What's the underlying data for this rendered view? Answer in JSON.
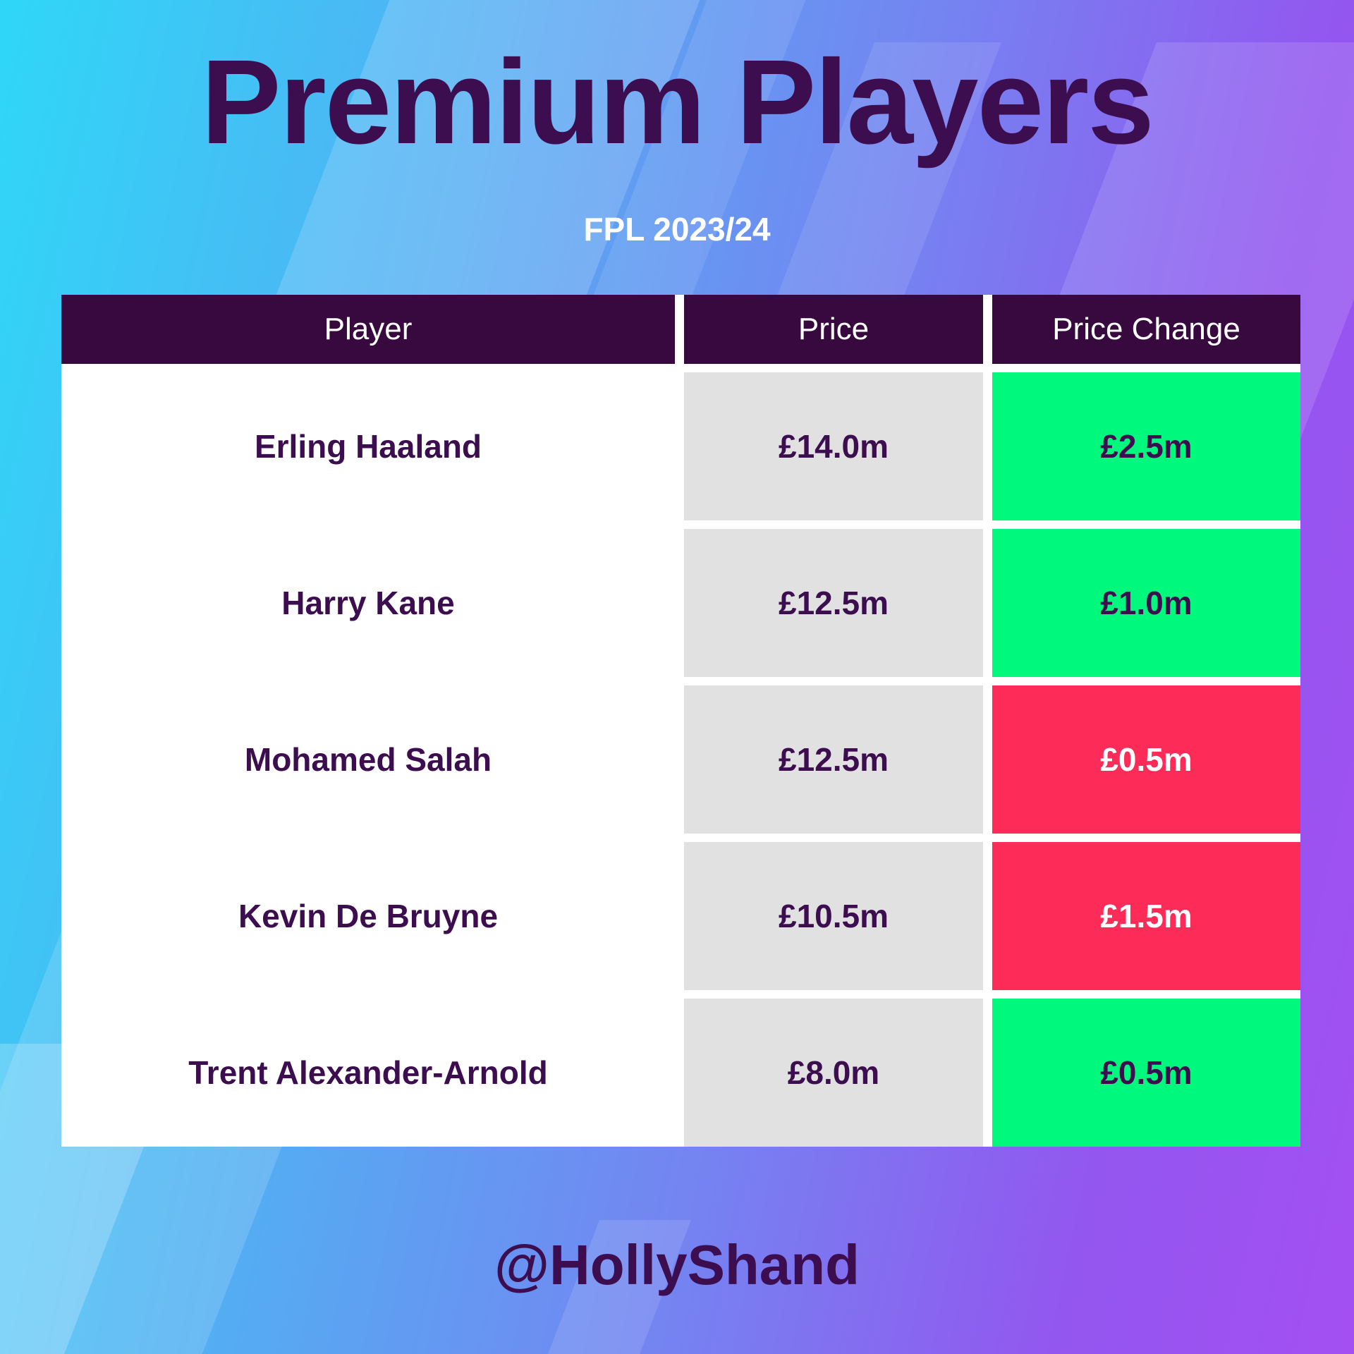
{
  "title": "Premium Players",
  "subtitle": "FPL 2023/24",
  "footer": "@HollyShand",
  "colors": {
    "background_cyan": "#2fd7f7",
    "background_purple": "#a44ff2",
    "dark_purple_ink": "#3c0e4f",
    "header_background": "#38093f",
    "price_cell_gray": "#e2e1e2",
    "increase_green": "#00f87d",
    "decrease_red": "#fc2b58"
  },
  "table": {
    "headers": [
      "Player",
      "Price",
      "Price Change"
    ],
    "rows": [
      {
        "player": "Erling Haaland",
        "price": "£14.0m",
        "change": "£2.5m",
        "direction": "up"
      },
      {
        "player": "Harry Kane",
        "price": "£12.5m",
        "change": "£1.0m",
        "direction": "up"
      },
      {
        "player": "Mohamed Salah",
        "price": "£12.5m",
        "change": "£0.5m",
        "direction": "down"
      },
      {
        "player": "Kevin De Bruyne",
        "price": "£10.5m",
        "change": "£1.5m",
        "direction": "down"
      },
      {
        "player": "Trent Alexander-Arnold",
        "price": "£8.0m",
        "change": "£0.5m",
        "direction": "up"
      }
    ]
  },
  "chart_data": {
    "type": "table",
    "title": "Premium Players",
    "subtitle": "FPL 2023/24",
    "columns": [
      "Player",
      "Price",
      "Price Change"
    ],
    "rows": [
      [
        "Erling Haaland",
        "£14.0m",
        "£2.5m"
      ],
      [
        "Harry Kane",
        "£12.5m",
        "£1.0m"
      ],
      [
        "Mohamed Salah",
        "£12.5m",
        "£0.5m"
      ],
      [
        "Kevin De Bruyne",
        "£10.5m",
        "£1.5m"
      ],
      [
        "Trent Alexander-Arnold",
        "£8.0m",
        "£0.5m"
      ]
    ],
    "price_change_direction": [
      "up",
      "up",
      "down",
      "down",
      "up"
    ],
    "price_values_millions": [
      14.0,
      12.5,
      12.5,
      10.5,
      8.0
    ],
    "price_change_values_millions": [
      2.5,
      1.0,
      -0.5,
      -1.5,
      0.5
    ],
    "annotations": [
      "@HollyShand"
    ]
  }
}
